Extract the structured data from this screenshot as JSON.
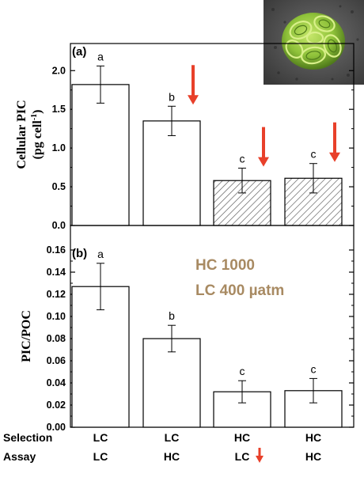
{
  "chart_data": [
    {
      "type": "bar",
      "panel_label": "(a)",
      "ylabel": "Cellular PIC",
      "ylabel_unit": "(pg cell",
      "ylabel_sup": "-1",
      "ylabel_close": ")",
      "ylim": [
        0,
        2.35
      ],
      "yticks": [
        "0.0",
        "0.5",
        "1.0",
        "1.5",
        "2.0"
      ],
      "ytick_values": [
        0,
        0.5,
        1.0,
        1.5,
        2.0
      ],
      "categories": [
        "LC/LC",
        "LC/HC",
        "HC/LC",
        "HC/HC"
      ],
      "values": [
        1.82,
        1.35,
        0.58,
        0.61
      ],
      "errors": [
        0.24,
        0.19,
        0.16,
        0.19
      ],
      "letters": [
        "a",
        "b",
        "c",
        "c"
      ],
      "hatched": [
        false,
        false,
        true,
        true
      ],
      "arrows": [
        false,
        true,
        true,
        true
      ]
    },
    {
      "type": "bar",
      "panel_label": "(b)",
      "ylabel": "PIC/POC",
      "ylim": [
        0,
        0.16
      ],
      "yticks": [
        "0.00",
        "0.02",
        "0.04",
        "0.06",
        "0.08",
        "0.10",
        "0.12",
        "0.14",
        "0.16"
      ],
      "ytick_values": [
        0,
        0.02,
        0.04,
        0.06,
        0.08,
        0.1,
        0.12,
        0.14,
        0.16
      ],
      "categories": [
        "LC/LC",
        "LC/HC",
        "HC/LC",
        "HC/HC"
      ],
      "values": [
        0.127,
        0.08,
        0.032,
        0.033
      ],
      "errors": [
        0.021,
        0.012,
        0.01,
        0.011
      ],
      "letters": [
        "a",
        "b",
        "c",
        "c"
      ],
      "hatched": [
        false,
        false,
        false,
        false
      ]
    }
  ],
  "annotation": {
    "line1": "HC 1000",
    "line2": "LC 400  µatm",
    "color": "#a88a62"
  },
  "xaxis": {
    "selection_label": "Selection",
    "assay_label": "Assay",
    "selection": [
      "LC",
      "LC",
      "HC",
      "HC"
    ],
    "assay": [
      "LC",
      "HC",
      "LC",
      "HC"
    ]
  },
  "colors": {
    "arrow": "#e8402a",
    "bar_fill": "#ffffff",
    "hatch": "#555555",
    "photo_cell": "#8fc23a"
  }
}
